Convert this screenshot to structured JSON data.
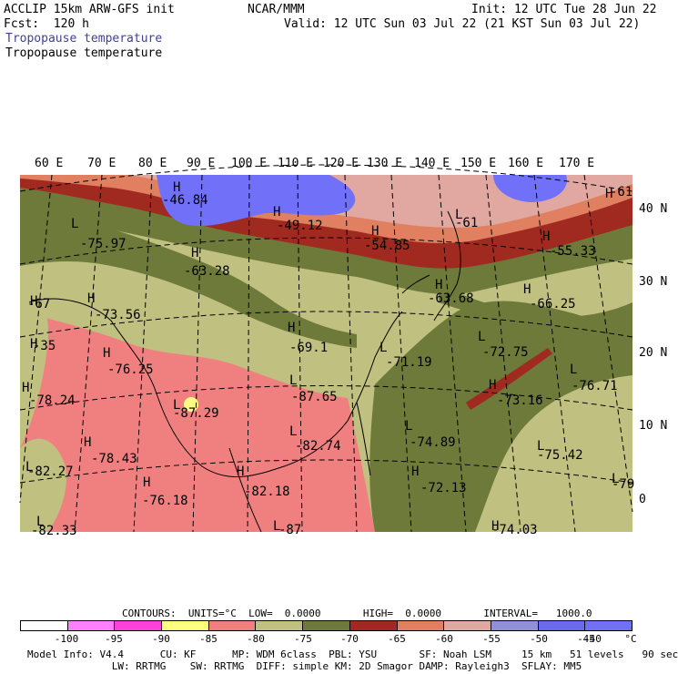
{
  "header": {
    "model": "ACCLIP 15km ARW-GFS init",
    "org": "NCAR/MMM",
    "init": "Init: 12 UTC Tue 28 Jun 22",
    "fcst": "Fcst:  120 h",
    "valid": "Valid: 12 UTC Sun 03 Jul 22 (21 KST Sun 03 Jul 22)",
    "field_title_1": "Tropopause temperature",
    "field_title_2": "Tropopause temperature"
  },
  "map": {
    "lon_labels": [
      "60 E",
      "70 E",
      "80 E",
      "90 E",
      "100 E",
      "110 E",
      "120 E",
      "130 E",
      "140 E",
      "150 E",
      "160 E",
      "170 E"
    ],
    "lat_labels": [
      "40 N",
      "30 N",
      "20 N",
      "10 N",
      "0"
    ],
    "markers": [
      {
        "letter": "H",
        "value": "-46.84"
      },
      {
        "letter": "H",
        "value": "-49.12"
      },
      {
        "letter": "L",
        "value": "-61"
      },
      {
        "letter": "H",
        "value": "-61"
      },
      {
        "letter": "L",
        "value": "-75.97"
      },
      {
        "letter": "H",
        "value": "-54.85"
      },
      {
        "letter": "H",
        "value": "-55.33"
      },
      {
        "letter": "H",
        "value": "-63.28"
      },
      {
        "letter": "H",
        "value": "-63.68"
      },
      {
        "letter": "H",
        "value": "-66.25"
      },
      {
        "letter": "H",
        "value": "-67"
      },
      {
        "letter": "H",
        "value": "-73.56"
      },
      {
        "letter": "H",
        "value": "-69.1"
      },
      {
        "letter": "L",
        "value": "-72.75"
      },
      {
        "letter": "H",
        "value": "-35"
      },
      {
        "letter": "H",
        "value": "-76.25"
      },
      {
        "letter": "L",
        "value": "-71.19"
      },
      {
        "letter": "L",
        "value": "-76.71"
      },
      {
        "letter": "H",
        "value": "-78.24"
      },
      {
        "letter": "L",
        "value": "-87.65"
      },
      {
        "letter": "H",
        "value": "-73.16"
      },
      {
        "letter": "L",
        "value": "-87.29"
      },
      {
        "letter": "L",
        "value": "-82.74"
      },
      {
        "letter": "L",
        "value": "-74.89"
      },
      {
        "letter": "H",
        "value": "-78.43"
      },
      {
        "letter": "L",
        "value": "-75.42"
      },
      {
        "letter": "H",
        "value": "-82.18"
      },
      {
        "letter": "H",
        "value": "-72.13"
      },
      {
        "letter": "L",
        "value": "-79"
      },
      {
        "letter": "H",
        "value": "-76.18"
      },
      {
        "letter": "L",
        "value": "-82.27"
      },
      {
        "letter": "L",
        "value": "-82.33"
      },
      {
        "letter": "L",
        "value": "-87"
      },
      {
        "letter": "H",
        "value": "-74.03"
      }
    ]
  },
  "contours": {
    "line": "CONTOURS:  UNITS=°C  LOW=  0.0000       HIGH=  0.0000       INTERVAL=   1000.0"
  },
  "colorbar": {
    "colors": [
      "#ffffff",
      "#ff80ff",
      "#ff40d8",
      "#ffff80",
      "#f08080",
      "#c0c080",
      "#6e7a3a",
      "#a02a20",
      "#e08060",
      "#e0a8a0",
      "#9090d8",
      "#6a6af0",
      "#7070f8"
    ],
    "labels": [
      "-100",
      "-95",
      "-90",
      "-85",
      "-80",
      "-75",
      "-70",
      "-65",
      "-60",
      "-55",
      "-50",
      "-45",
      "-40",
      "°C"
    ]
  },
  "footer": {
    "row1": "Model Info: V4.4      CU: KF      MP: WDM 6class  PBL: YSU       SF: Noah LSM     15 km   51 levels   90 sec",
    "row2": "              LW: RRTMG    SW: RRTMG  DIFF: simple KM: 2D Smagor DAMP: Rayleigh3  SFLAY: MM5"
  }
}
